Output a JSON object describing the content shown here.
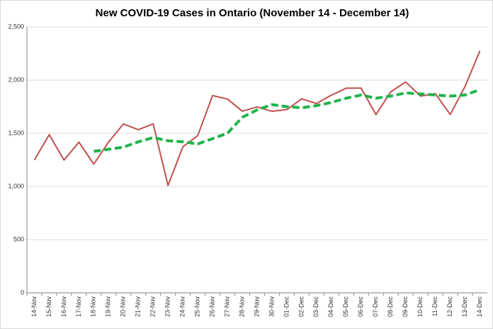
{
  "chart_data": {
    "type": "line",
    "title": "New COVID-19 Cases in Ontario (November 14 - December 14)",
    "categories": [
      "14-Nov",
      "15-Nov",
      "16-Nov",
      "17-Nov",
      "18-Nov",
      "19-Nov",
      "20-Nov",
      "21-Nov",
      "22-Nov",
      "23-Nov",
      "24-Nov",
      "25-Nov",
      "26-Nov",
      "27-Nov",
      "28-Nov",
      "29-Nov",
      "30-Nov",
      "01-Dec",
      "02-Dec",
      "03-Dec",
      "04-Dec",
      "05-Dec",
      "06-Dec",
      "07-Dec",
      "08-Dec",
      "09-Dec",
      "10-Dec",
      "11-Dec",
      "12-Dec",
      "13-Dec",
      "14-Dec"
    ],
    "series": [
      {
        "color": "#c0504d",
        "dashed": false,
        "values": [
          1248,
          1487,
          1248,
          1417,
          1210,
          1418,
          1588,
          1534,
          1589,
          1009,
          1373,
          1478,
          1855,
          1822,
          1708,
          1748,
          1707,
          1723,
          1824,
          1780,
          1859,
          1924,
          1925,
          1676,
          1890,
          1983,
          1850,
          1873,
          1677,
          1940,
          2276
        ]
      },
      {
        "color": "#1fb24a",
        "dashed": true,
        "values": [
          null,
          null,
          null,
          null,
          1330,
          1350,
          1370,
          1420,
          1460,
          1430,
          1420,
          1400,
          1450,
          1500,
          1650,
          1720,
          1770,
          1750,
          1740,
          1760,
          1790,
          1830,
          1860,
          1830,
          1850,
          1880,
          1870,
          1860,
          1850,
          1860,
          1910
        ]
      }
    ],
    "ylim": [
      0,
      2500
    ],
    "yticks": [
      0,
      500,
      {
        "value": 1000,
        "label": "1,000"
      },
      {
        "value": 1500,
        "label": "1,500"
      },
      {
        "value": 2000,
        "label": "2,000"
      },
      {
        "value": 2500,
        "label": "2,500"
      }
    ],
    "grid": true
  }
}
